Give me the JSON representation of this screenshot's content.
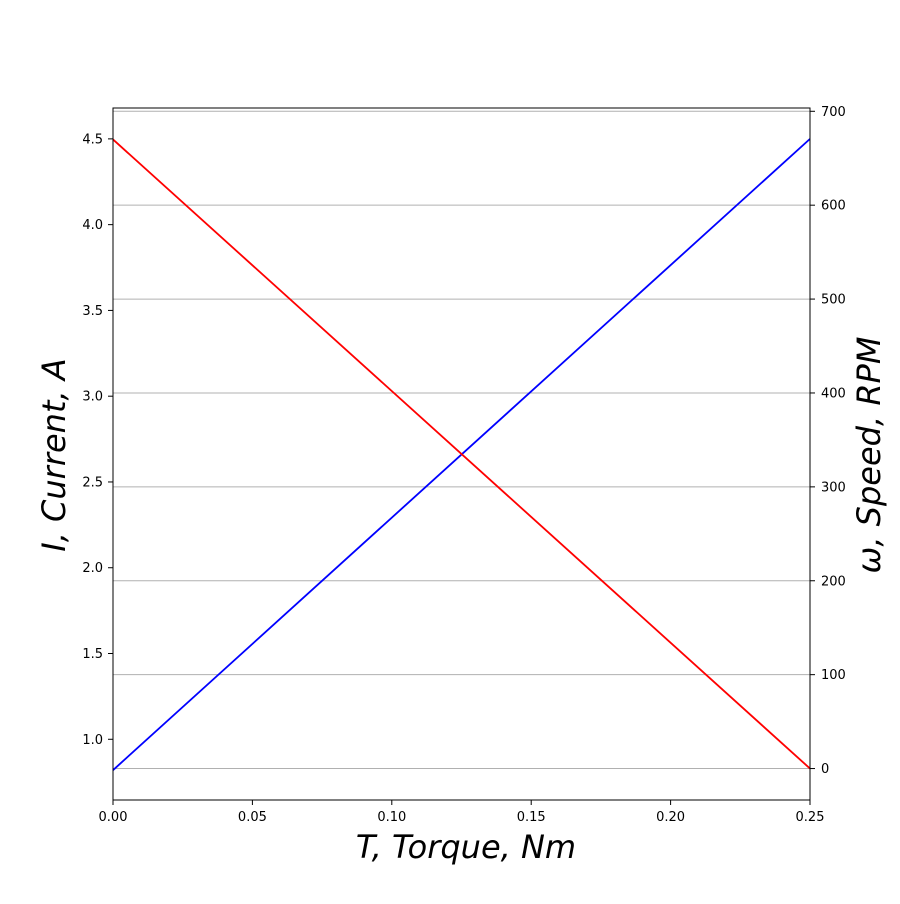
{
  "chart_data": {
    "type": "line",
    "xlabel": "T, Torque, Nm",
    "ylabel_left": "I, Current, A",
    "ylabel_right": "ω, Speed, RPM",
    "xlim": [
      0,
      0.25
    ],
    "ylim_left": [
      0.646,
      4.68
    ],
    "ylim_right": [
      -33.5,
      703.5
    ],
    "x_ticks": [
      "0.00",
      "0.05",
      "0.10",
      "0.15",
      "0.20",
      "0.25"
    ],
    "left_ticks": [
      "1.0",
      "1.5",
      "2.0",
      "2.5",
      "3.0",
      "3.5",
      "4.0",
      "4.5"
    ],
    "right_ticks": [
      "0",
      "100",
      "200",
      "300",
      "400",
      "500",
      "600",
      "700"
    ],
    "grid": "horizontal lines at right-axis ticks",
    "legend": "none",
    "series": [
      {
        "axis": "left",
        "color": "#0000ff",
        "x": [
          0,
          0.25
        ],
        "y": [
          0.82,
          4.5
        ]
      },
      {
        "axis": "right",
        "color": "#ff0000",
        "x": [
          0,
          0.25
        ],
        "y": [
          670,
          0
        ]
      }
    ]
  }
}
